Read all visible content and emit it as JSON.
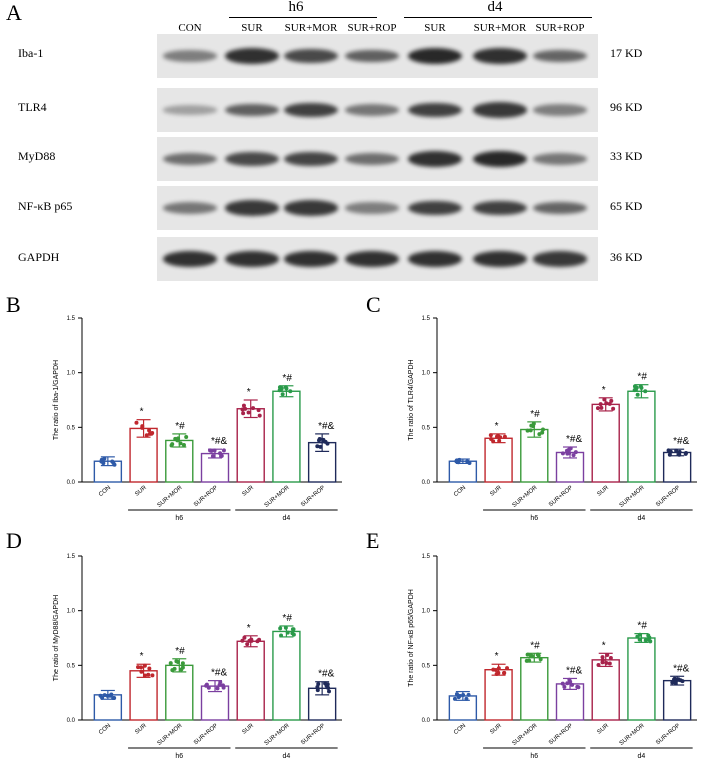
{
  "panel_labels": {
    "A": "A",
    "B": "B",
    "C": "C",
    "D": "D",
    "E": "E"
  },
  "blot": {
    "groups": [
      {
        "name": "h6"
      },
      {
        "name": "d4"
      }
    ],
    "columns": [
      "CON",
      "SUR",
      "SUR+MOR",
      "SUR+ROP",
      "SUR",
      "SUR+MOR",
      "SUR+ROP"
    ],
    "rows": [
      {
        "protein": "Iba-1",
        "size": "17 KD",
        "intensity": [
          0.35,
          0.85,
          0.7,
          0.55,
          0.9,
          0.85,
          0.5
        ]
      },
      {
        "protein": "TLR4",
        "size": "96 KD",
        "intensity": [
          0.12,
          0.55,
          0.75,
          0.4,
          0.75,
          0.8,
          0.35
        ]
      },
      {
        "protein": "MyD88",
        "size": "33 KD",
        "intensity": [
          0.45,
          0.7,
          0.72,
          0.45,
          0.85,
          0.9,
          0.4
        ]
      },
      {
        "protein": "NF-κB p65",
        "size": "65 KD",
        "intensity": [
          0.4,
          0.8,
          0.8,
          0.35,
          0.75,
          0.75,
          0.5
        ]
      },
      {
        "protein": "GAPDH",
        "size": "36 KD",
        "intensity": [
          0.85,
          0.85,
          0.85,
          0.85,
          0.85,
          0.85,
          0.8
        ]
      }
    ]
  },
  "band_color": "#1a1a1a",
  "chart_data": [
    {
      "type": "bar",
      "panel": "B",
      "ylabel": "The ratio of Iba-1/GAPDH",
      "ylim": [
        0,
        1.5
      ],
      "yticks": [
        "0.0",
        "0.5",
        "1.0",
        "1.5"
      ],
      "categories": [
        "CON",
        "SUR",
        "SUR+MOR",
        "SUR+ROP",
        "SUR",
        "SUR+MOR",
        "SUR+ROP"
      ],
      "values": [
        0.19,
        0.49,
        0.38,
        0.26,
        0.67,
        0.83,
        0.36
      ],
      "errors": [
        0.04,
        0.08,
        0.06,
        0.04,
        0.08,
        0.05,
        0.08
      ],
      "annotations": [
        "",
        "*",
        "*#",
        "*#&",
        "*",
        "*#",
        "*#&"
      ],
      "groups": [
        {
          "name": "h6",
          "from": 1,
          "to": 3
        },
        {
          "name": "d4",
          "from": 4,
          "to": 6
        }
      ]
    },
    {
      "type": "bar",
      "panel": "C",
      "ylabel": "The ratio of TLR4/GAPDH",
      "ylim": [
        0,
        1.5
      ],
      "yticks": [
        "0.0",
        "0.5",
        "1.0",
        "1.5"
      ],
      "categories": [
        "CON",
        "SUR",
        "SUR+MOR",
        "SUR+ROP",
        "SUR",
        "SUR+MOR",
        "SUR+ROP"
      ],
      "values": [
        0.19,
        0.4,
        0.48,
        0.27,
        0.71,
        0.83,
        0.27
      ],
      "errors": [
        0.02,
        0.04,
        0.07,
        0.05,
        0.06,
        0.06,
        0.03
      ],
      "annotations": [
        "",
        "*",
        "*#",
        "*#&",
        "*",
        "*#",
        "*#&"
      ],
      "groups": [
        {
          "name": "h6",
          "from": 1,
          "to": 3
        },
        {
          "name": "d4",
          "from": 4,
          "to": 6
        }
      ]
    },
    {
      "type": "bar",
      "panel": "D",
      "ylabel": "The ratio of MyD88/GAPDH",
      "ylim": [
        0,
        1.5
      ],
      "yticks": [
        "0.0",
        "0.5",
        "1.0",
        "1.5"
      ],
      "categories": [
        "CON",
        "SUR",
        "SUR+MOR",
        "SUR+ROP",
        "SUR",
        "SUR+MOR",
        "SUR+ROP"
      ],
      "values": [
        0.23,
        0.45,
        0.5,
        0.31,
        0.72,
        0.81,
        0.29
      ],
      "errors": [
        0.04,
        0.06,
        0.06,
        0.05,
        0.05,
        0.05,
        0.06
      ],
      "annotations": [
        "",
        "*",
        "*#",
        "*#&",
        "*",
        "*#",
        "*#&"
      ],
      "groups": [
        {
          "name": "h6",
          "from": 1,
          "to": 3
        },
        {
          "name": "d4",
          "from": 4,
          "to": 6
        }
      ]
    },
    {
      "type": "bar",
      "panel": "E",
      "ylabel": "The ratio of NF-κB p65/GAPDH",
      "ylim": [
        0,
        1.5
      ],
      "yticks": [
        "0.0",
        "0.5",
        "1.0",
        "1.5"
      ],
      "categories": [
        "CON",
        "SUR",
        "SUR+MOR",
        "SUR+ROP",
        "SUR",
        "SUR+MOR",
        "SUR+ROP"
      ],
      "values": [
        0.22,
        0.46,
        0.57,
        0.33,
        0.55,
        0.75,
        0.36
      ],
      "errors": [
        0.04,
        0.05,
        0.04,
        0.05,
        0.06,
        0.04,
        0.04
      ],
      "annotations": [
        "",
        "*",
        "*#",
        "*#&",
        "*",
        "*#",
        "*#&"
      ],
      "groups": [
        {
          "name": "h6",
          "from": 1,
          "to": 3
        },
        {
          "name": "d4",
          "from": 4,
          "to": 6
        }
      ]
    }
  ],
  "bar_colors": [
    "#2e5aa8",
    "#c0272d",
    "#3a9a3a",
    "#7b3fa0",
    "#a8224a",
    "#2a9a4a",
    "#1f2a5a"
  ]
}
